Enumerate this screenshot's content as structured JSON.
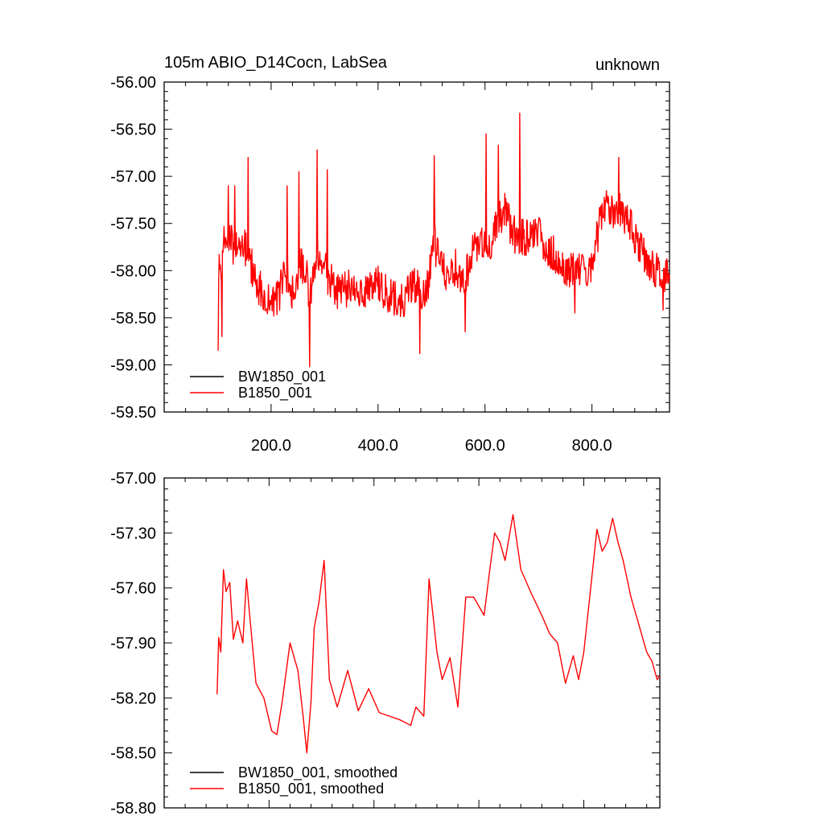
{
  "page": {
    "title_left": "105m ABIO_D14Cocn, LabSea",
    "title_right": "unknown"
  },
  "chart_data": [
    {
      "type": "line",
      "title": "105m ABIO_D14Cocn, LabSea",
      "title_right": "unknown",
      "xlabel": "",
      "ylabel": "",
      "xlim": [
        0,
        945
      ],
      "ylim": [
        -59.5,
        -56.0
      ],
      "x_ticks": [
        200,
        400,
        600,
        800
      ],
      "x_tick_labels": [
        "200.0",
        "400.0",
        "600.0",
        "800.0"
      ],
      "y_ticks": [
        -56.0,
        -56.5,
        -57.0,
        -57.5,
        -58.0,
        -58.5,
        -59.0,
        -59.5
      ],
      "y_tick_labels": [
        "-56.00",
        "-56.50",
        "-57.00",
        "-57.50",
        "-58.00",
        "-58.50",
        "-59.00",
        "-59.50"
      ],
      "grid": false,
      "legend_position": "bottom-left",
      "colors": {
        "BW1850_001": "#000000",
        "B1850_001": "#ff0000"
      },
      "series": [
        {
          "name": "BW1850_001",
          "color": "#000000",
          "x": [],
          "values": []
        },
        {
          "name": "B1850_001",
          "color": "#ff0000",
          "x_start": 101,
          "x_step": 1,
          "x_end": 945,
          "x_anchors": [
            101,
            104,
            108,
            113,
            118,
            125,
            132,
            140,
            150,
            157,
            163,
            175,
            190,
            205,
            215,
            225,
            240,
            255,
            265,
            272,
            280,
            286,
            295,
            305,
            315,
            330,
            350,
            370,
            390,
            410,
            430,
            450,
            470,
            480,
            495,
            505,
            520,
            530,
            545,
            560,
            575,
            590,
            600,
            610,
            620,
            630,
            640,
            650,
            665,
            680,
            700,
            720,
            735,
            750,
            765,
            780,
            790,
            800,
            815,
            825,
            835,
            845,
            855,
            865,
            875,
            890,
            905,
            920,
            930,
            940,
            945
          ],
          "trend_anchors": [
            -58.2,
            -57.9,
            -58.0,
            -57.6,
            -57.7,
            -57.65,
            -57.8,
            -57.7,
            -57.75,
            -57.8,
            -57.95,
            -58.15,
            -58.25,
            -58.3,
            -58.25,
            -58.0,
            -58.25,
            -57.95,
            -58.0,
            -58.3,
            -57.95,
            -57.8,
            -57.9,
            -58.05,
            -58.15,
            -58.25,
            -58.15,
            -58.3,
            -58.1,
            -58.2,
            -58.3,
            -58.3,
            -58.15,
            -58.25,
            -58.1,
            -57.7,
            -58.0,
            -58.05,
            -57.95,
            -58.15,
            -57.8,
            -57.75,
            -57.7,
            -57.8,
            -57.5,
            -57.45,
            -57.35,
            -57.6,
            -57.65,
            -57.65,
            -57.6,
            -57.8,
            -57.85,
            -57.95,
            -58.0,
            -57.95,
            -58.15,
            -57.95,
            -57.5,
            -57.35,
            -57.35,
            -57.4,
            -57.35,
            -57.5,
            -57.55,
            -57.75,
            -57.95,
            -58.0,
            -58.05,
            -58.05,
            -58.1
          ],
          "noise_amplitude": 0.2,
          "spikes": [
            [
              101,
              -58.85
            ],
            [
              108,
              -58.7
            ],
            [
              120,
              -57.1
            ],
            [
              132,
              -57.1
            ],
            [
              157,
              -56.8
            ],
            [
              230,
              -57.1
            ],
            [
              252,
              -56.95
            ],
            [
              272,
              -59.02
            ],
            [
              286,
              -56.72
            ],
            [
              305,
              -56.93
            ],
            [
              478,
              -58.88
            ],
            [
              505,
              -56.78
            ],
            [
              563,
              -58.65
            ],
            [
              602,
              -56.55
            ],
            [
              625,
              -56.67
            ],
            [
              665,
              -56.33
            ],
            [
              768,
              -58.45
            ],
            [
              850,
              -56.8
            ],
            [
              933,
              -58.42
            ]
          ]
        }
      ]
    },
    {
      "type": "line",
      "title": "",
      "xlabel": "",
      "ylabel": "",
      "xlim": [
        0,
        945
      ],
      "ylim": [
        -58.8,
        -57.0
      ],
      "y_ticks": [
        -57.0,
        -57.3,
        -57.6,
        -57.9,
        -58.2,
        -58.5,
        -58.8
      ],
      "y_tick_labels": [
        "-57.00",
        "-57.30",
        "-57.60",
        "-57.90",
        "-58.20",
        "-58.50",
        "-58.80"
      ],
      "grid": false,
      "legend_position": "bottom-left",
      "colors": {
        "BW1850_001, smoothed": "#000000",
        "B1850_001, smoothed": "#ff0000"
      },
      "series": [
        {
          "name": "BW1850_001, smoothed",
          "color": "#000000",
          "x": [],
          "values": []
        },
        {
          "name": "B1850_001, smoothed",
          "color": "#ff0000",
          "x": [
            101,
            104,
            108,
            113,
            118,
            125,
            132,
            140,
            150,
            157,
            163,
            175,
            190,
            205,
            215,
            225,
            240,
            255,
            265,
            272,
            280,
            286,
            295,
            305,
            315,
            330,
            350,
            370,
            390,
            410,
            430,
            450,
            470,
            480,
            495,
            505,
            520,
            530,
            545,
            560,
            575,
            590,
            600,
            610,
            620,
            630,
            640,
            650,
            665,
            680,
            700,
            720,
            735,
            750,
            765,
            780,
            790,
            800,
            815,
            825,
            835,
            845,
            855,
            865,
            875,
            890,
            905,
            920,
            930,
            940,
            945
          ],
          "values": [
            -58.18,
            -57.87,
            -57.95,
            -57.5,
            -57.62,
            -57.57,
            -57.88,
            -57.78,
            -57.9,
            -57.55,
            -57.75,
            -58.12,
            -58.2,
            -58.38,
            -58.4,
            -58.22,
            -57.9,
            -58.05,
            -58.3,
            -58.5,
            -58.22,
            -57.82,
            -57.68,
            -57.45,
            -58.1,
            -58.25,
            -58.05,
            -58.27,
            -58.15,
            -58.28,
            -58.3,
            -58.32,
            -58.35,
            -58.25,
            -58.3,
            -57.55,
            -57.95,
            -58.1,
            -57.98,
            -58.25,
            -57.65,
            -57.65,
            -57.7,
            -57.75,
            -57.52,
            -57.3,
            -57.35,
            -57.45,
            -57.2,
            -57.5,
            -57.63,
            -57.75,
            -57.85,
            -57.9,
            -58.12,
            -57.97,
            -58.1,
            -57.95,
            -57.55,
            -57.28,
            -57.4,
            -57.35,
            -57.22,
            -57.35,
            -57.45,
            -57.65,
            -57.8,
            -57.95,
            -58.0,
            -58.1,
            -58.08
          ]
        }
      ]
    }
  ]
}
